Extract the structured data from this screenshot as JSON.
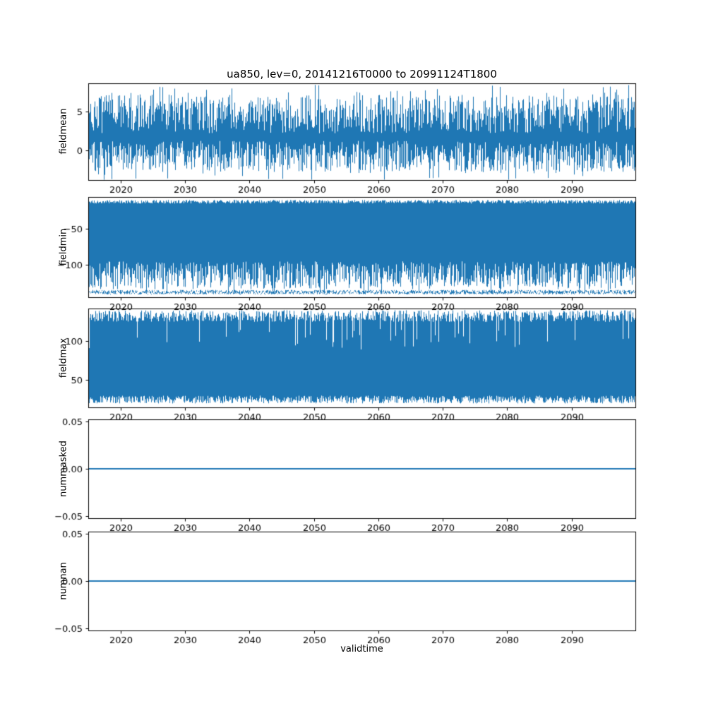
{
  "figure": {
    "title": "ua850, lev=0, 20141216T0000 to 20991124T1800",
    "xlabel": "validtime",
    "background": "#ffffff",
    "accent_color": "#1f77b4",
    "axis_color": "#000000"
  },
  "chart_data": {
    "type": "line",
    "title": "ua850, lev=0, 20141216T0000 to 20991124T1800",
    "xlabel": "validtime",
    "legend": "none",
    "grid": false,
    "x_axis": {
      "range": [
        2014.96,
        2099.9
      ],
      "ticks": [
        2020,
        2030,
        2040,
        2050,
        2060,
        2070,
        2080,
        2090
      ],
      "tick_labels": [
        "2020",
        "2030",
        "2040",
        "2050",
        "2060",
        "2070",
        "2080",
        "2090"
      ]
    },
    "subplots": [
      {
        "name": "fieldmean",
        "ylabel": "fieldmean",
        "ylim": [
          -3.9,
          8.7
        ],
        "yticks": [
          0,
          5
        ],
        "ytick_labels": [
          "0",
          "5"
        ],
        "style": "dense-noise",
        "seed": 7,
        "noise": {
          "upper": [
            2.2,
            7.2
          ],
          "lower": [
            -2.8,
            1.2
          ],
          "spikes_up": {
            "p": 0.04,
            "range": [
              7.2,
              8.6
            ]
          },
          "spikes_down": {
            "p": 0.05,
            "range": [
              -3.9,
              -2.8
            ]
          }
        },
        "summary": "high-frequency series oscillating roughly between -3 and 8, mean about 2"
      },
      {
        "name": "fieldmin",
        "ylabel": "fieldmin",
        "ylim": [
          -144,
          -7
        ],
        "yticks": [
          -100,
          -50
        ],
        "ytick_labels": [
          "−100",
          "−50"
        ],
        "style": "dense-noise",
        "seed": 11,
        "noise": {
          "upper": [
            -16,
            -11
          ],
          "lower": [
            -133,
            -95
          ],
          "spikes_down": {
            "p": 0.02,
            "range": [
              -140,
              -136
            ]
          },
          "floor": [
            -140,
            -134
          ]
        },
        "summary": "dense band from about -12 down to about -135 with spikes reaching about -140"
      },
      {
        "name": "fieldmax",
        "ylabel": "fieldmax",
        "ylim": [
          15,
          141
        ],
        "yticks": [
          50,
          100
        ],
        "ytick_labels": [
          "50",
          "100"
        ],
        "style": "dense-noise",
        "seed": 13,
        "noise": {
          "upper": [
            124,
            139
          ],
          "lower": [
            20,
            30
          ],
          "notch": {
            "p": 0.07,
            "range": [
              88,
              116
            ]
          }
        },
        "summary": "dense band from about 25 up to about 138 with occasional dips of the maximum to about 95"
      },
      {
        "name": "nummasked",
        "ylabel": "nummasked",
        "ylim": [
          -0.052,
          0.052
        ],
        "yticks": [
          -0.05,
          0,
          0.05
        ],
        "ytick_labels": [
          "−0.05",
          "0.00",
          "0.05"
        ],
        "style": "constant",
        "value": 0,
        "summary": "constant value 0 over the whole period"
      },
      {
        "name": "numnan",
        "ylabel": "numnan",
        "ylim": [
          -0.052,
          0.052
        ],
        "yticks": [
          -0.05,
          0,
          0.05
        ],
        "ytick_labels": [
          "−0.05",
          "0.00",
          "0.05"
        ],
        "style": "constant",
        "value": 0,
        "summary": "constant value 0 over the whole period"
      }
    ]
  }
}
